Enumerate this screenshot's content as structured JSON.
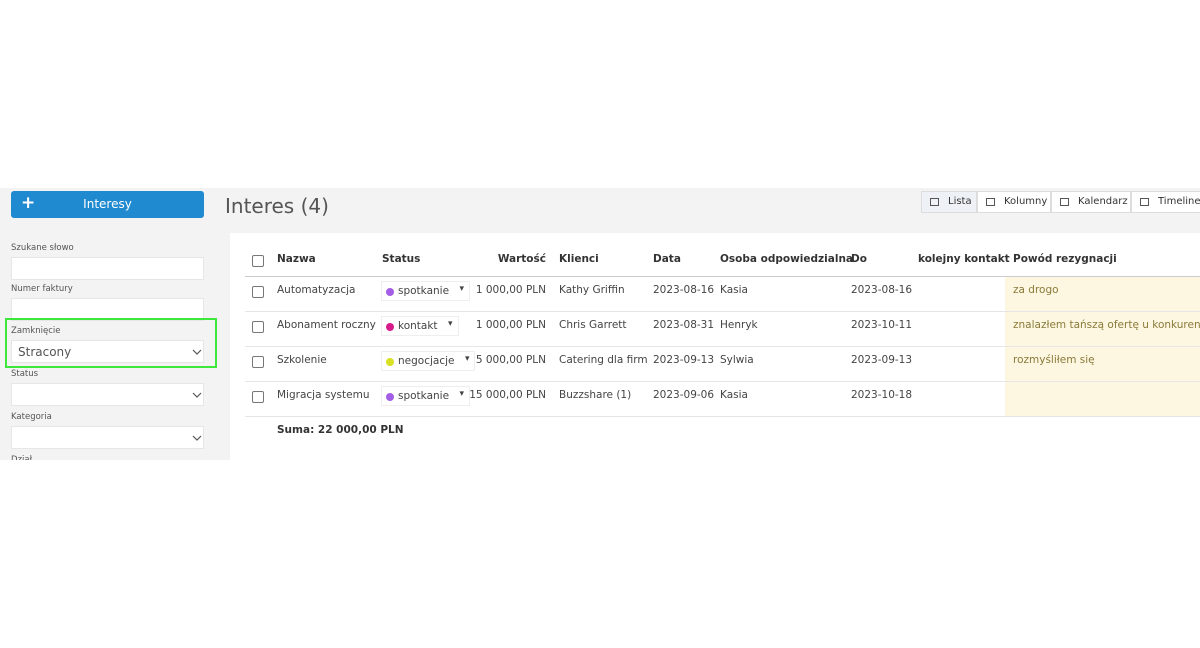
{
  "sidebar": {
    "button": "Interesy",
    "fields": [
      {
        "label": "Szukane słowo",
        "value": null,
        "kind": "input"
      },
      {
        "label": "Numer faktury",
        "value": null,
        "kind": "input"
      },
      {
        "label": "Zamknięcie",
        "value": "Stracony",
        "kind": "select"
      },
      {
        "label": "Status",
        "value": null,
        "kind": "select"
      },
      {
        "label": "Kategoria",
        "value": null,
        "kind": "select"
      },
      {
        "label": "Dział",
        "value": null,
        "kind": "select"
      }
    ]
  },
  "header": {
    "title": "Interes (4)",
    "views": [
      "Lista",
      "Kolumny",
      "Kalendarz",
      "Timeline"
    ]
  },
  "table": {
    "columns": [
      "Nazwa",
      "Status",
      "Wartość",
      "Klienci",
      "Data",
      "Osoba odpowiedzialna",
      "Do",
      "kolejny kontakt",
      "Powód rezygnacji"
    ],
    "rows": [
      [
        "Automatyzacja",
        "spotkanie",
        "1 000,00 PLN",
        "Kathy Griffin",
        "2023-08-16",
        "Kasia",
        "2023-08-16",
        null,
        "za drogo"
      ],
      [
        "Abonament roczny",
        "kontakt",
        "1 000,00 PLN",
        "Chris Garrett",
        "2023-08-31",
        "Henryk",
        "2023-10-11",
        null,
        "znalazłem tańszą ofertę u konkurencji"
      ],
      [
        "Szkolenie",
        "negocjacje",
        "5 000,00 PLN",
        "Catering dla firm",
        "2023-09-13",
        "Sylwia",
        "2023-09-13",
        null,
        "rozmyśliłem się"
      ],
      [
        "Migracja systemu",
        "spotkanie",
        "15 000,00 PLN",
        "Buzzshare (1)",
        "2023-09-06",
        "Kasia",
        "2023-10-18",
        null,
        null
      ]
    ],
    "status_colors": [
      "#a45ee5",
      "#d81b8c",
      "#d9e021",
      "#a45ee5"
    ],
    "sum": "Suma: 22 000,00 PLN"
  }
}
